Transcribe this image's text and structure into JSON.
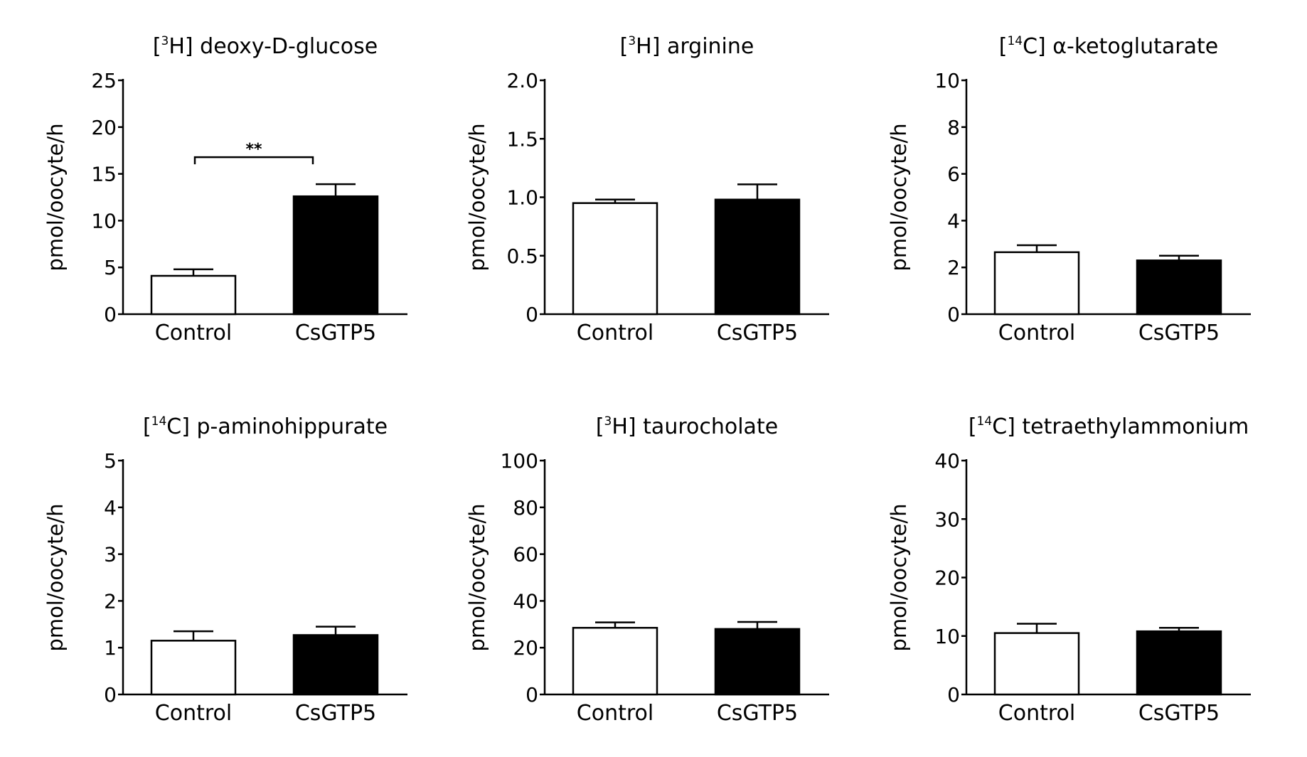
{
  "chart_data": [
    {
      "type": "bar",
      "title": "[3H] deoxy-D-glucose",
      "title_prefix": "[",
      "title_isotope": "3",
      "title_rest": "H] deoxy-D-glucose",
      "ylabel": "pmol/oocyte/h",
      "categories": [
        "Control",
        "CsGTP5"
      ],
      "values": [
        4.1,
        12.6
      ],
      "errors": [
        0.7,
        1.3
      ],
      "bar_colors": [
        "#ffffff",
        "#000000"
      ],
      "ylim": [
        0,
        25
      ],
      "yticks": [
        0,
        5,
        10,
        15,
        20,
        25
      ],
      "ytick_labels": [
        "0",
        "5",
        "10",
        "15",
        "20",
        "25"
      ],
      "significance": {
        "label": "**",
        "between": [
          "Control",
          "CsGTP5"
        ]
      }
    },
    {
      "type": "bar",
      "title": "[3H] arginine",
      "title_prefix": "[",
      "title_isotope": "3",
      "title_rest": "H] arginine",
      "ylabel": "pmol/oocyte/h",
      "categories": [
        "Control",
        "CsGTP5"
      ],
      "values": [
        0.95,
        0.98
      ],
      "errors": [
        0.03,
        0.13
      ],
      "bar_colors": [
        "#ffffff",
        "#000000"
      ],
      "ylim": [
        0,
        2.0
      ],
      "yticks": [
        0,
        0.5,
        1.0,
        1.5,
        2.0
      ],
      "ytick_labels": [
        "0",
        "0.5",
        "1.0",
        "1.5",
        "2.0"
      ]
    },
    {
      "type": "bar",
      "title": "[14C] α-ketoglutarate",
      "title_prefix": "[",
      "title_isotope": "14",
      "title_rest": "C] α-ketoglutarate",
      "ylabel": "pmol/oocyte/h",
      "categories": [
        "Control",
        "CsGTP5"
      ],
      "values": [
        2.65,
        2.3
      ],
      "errors": [
        0.3,
        0.2
      ],
      "bar_colors": [
        "#ffffff",
        "#000000"
      ],
      "ylim": [
        0,
        10
      ],
      "yticks": [
        0,
        2,
        4,
        6,
        8,
        10
      ],
      "ytick_labels": [
        "0",
        "2",
        "4",
        "6",
        "8",
        "10"
      ]
    },
    {
      "type": "bar",
      "title": "[14C] p-aminohippurate",
      "title_prefix": "[",
      "title_isotope": "14",
      "title_rest": "C] p-aminohippurate",
      "ylabel": "pmol/oocyte/h",
      "categories": [
        "Control",
        "CsGTP5"
      ],
      "values": [
        1.15,
        1.27
      ],
      "errors": [
        0.2,
        0.18
      ],
      "bar_colors": [
        "#ffffff",
        "#000000"
      ],
      "ylim": [
        0,
        5
      ],
      "yticks": [
        0,
        1,
        2,
        3,
        4,
        5
      ],
      "ytick_labels": [
        "0",
        "1",
        "2",
        "3",
        "4",
        "5"
      ]
    },
    {
      "type": "bar",
      "title": "[3H] taurocholate",
      "title_prefix": "[",
      "title_isotope": "3",
      "title_rest": "H] taurocholate",
      "ylabel": "pmol/oocyte/h",
      "categories": [
        "Control",
        "CsGTP5"
      ],
      "values": [
        28.5,
        28
      ],
      "errors": [
        2.3,
        3
      ],
      "bar_colors": [
        "#ffffff",
        "#000000"
      ],
      "ylim": [
        0,
        100
      ],
      "yticks": [
        0,
        20,
        40,
        60,
        80,
        100
      ],
      "ytick_labels": [
        "0",
        "20",
        "40",
        "60",
        "80",
        "100"
      ]
    },
    {
      "type": "bar",
      "title": "[14C] tetraethylammonium",
      "title_prefix": "[",
      "title_isotope": "14",
      "title_rest": "C] tetraethylammonium",
      "ylabel": "pmol/oocyte/h",
      "categories": [
        "Control",
        "CsGTP5"
      ],
      "values": [
        10.5,
        10.8
      ],
      "errors": [
        1.6,
        0.6
      ],
      "bar_colors": [
        "#ffffff",
        "#000000"
      ],
      "ylim": [
        0,
        40
      ],
      "yticks": [
        0,
        10,
        20,
        30,
        40
      ],
      "ytick_labels": [
        "0",
        "10",
        "20",
        "30",
        "40"
      ]
    }
  ]
}
